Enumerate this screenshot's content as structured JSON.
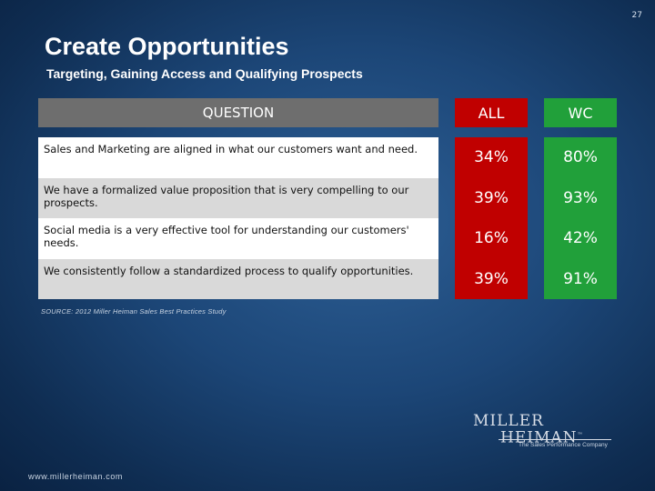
{
  "slide": {
    "number": "27",
    "title": "Create Opportunities",
    "subtitle": "Targeting, Gaining Access and Qualifying Prospects"
  },
  "table": {
    "headers": {
      "question": "QUESTION",
      "all": "ALL",
      "wc": "WC"
    },
    "rows": [
      {
        "question": "Sales and Marketing are aligned in what our customers want and need.",
        "all": "34%",
        "wc": "80%"
      },
      {
        "question": "We have a formalized value proposition that is very compelling to our prospects.",
        "all": "39%",
        "wc": "93%"
      },
      {
        "question": "Social media is a very effective tool for understanding our customers' needs.",
        "all": "16%",
        "wc": "42%"
      },
      {
        "question": "We consistently follow a standardized process to qualify opportunities.",
        "all": "39%",
        "wc": "91%"
      }
    ],
    "colors": {
      "all": "#c00000",
      "wc": "#21a03a",
      "header_question": "#6e6e6e"
    }
  },
  "source": "SOURCE: 2012 Miller Heiman Sales Best Practices Study",
  "logo": {
    "line1": "MILLER",
    "line2": "HEIMAN",
    "trademark": "™",
    "tagline": "The Sales Performance Company"
  },
  "website": "www.millerheiman.com"
}
